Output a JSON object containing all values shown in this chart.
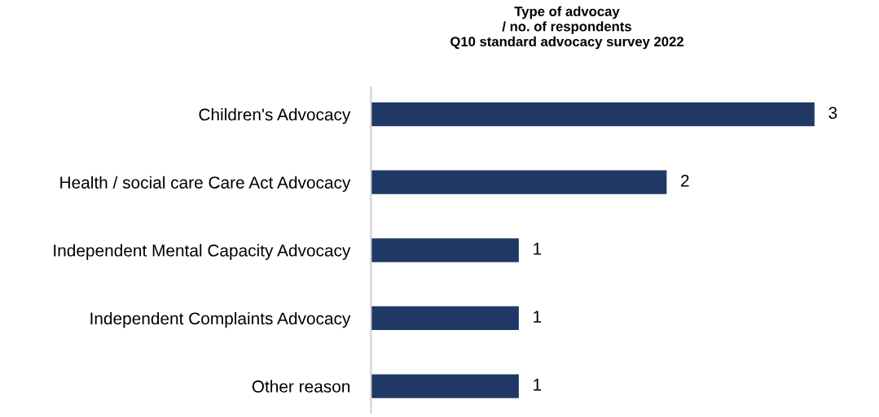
{
  "chart_data": {
    "type": "bar",
    "orientation": "horizontal",
    "title": "Type of advocay\n/ no. of respondents\nQ10 standard advocacy survey 2022",
    "categories": [
      "Children's Advocacy",
      "Health / social care Care Act Advocacy",
      "Independent Mental Capacity Advocacy",
      "Independent Complaints Advocacy",
      "Other reason"
    ],
    "values": [
      3,
      2,
      1,
      1,
      1
    ],
    "color": "#203864",
    "data_labels": true,
    "grid": false,
    "legend": false
  }
}
